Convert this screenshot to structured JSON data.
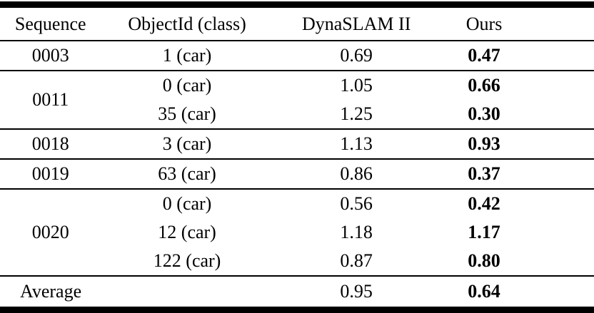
{
  "table": {
    "headers": [
      "Sequence",
      "ObjectId (class)",
      "DynaSLAM II",
      "Ours"
    ],
    "groups": [
      {
        "sequence": "0003",
        "rows": [
          {
            "object": "1 (car)",
            "dynaslam": "0.69",
            "ours": "0.47"
          }
        ]
      },
      {
        "sequence": "0011",
        "rows": [
          {
            "object": "0 (car)",
            "dynaslam": "1.05",
            "ours": "0.66"
          },
          {
            "object": "35 (car)",
            "dynaslam": "1.25",
            "ours": "0.30"
          }
        ]
      },
      {
        "sequence": "0018",
        "rows": [
          {
            "object": "3 (car)",
            "dynaslam": "1.13",
            "ours": "0.93"
          }
        ]
      },
      {
        "sequence": "0019",
        "rows": [
          {
            "object": "63 (car)",
            "dynaslam": "0.86",
            "ours": "0.37"
          }
        ]
      },
      {
        "sequence": "0020",
        "rows": [
          {
            "object": "0 (car)",
            "dynaslam": "0.56",
            "ours": "0.42"
          },
          {
            "object": "12 (car)",
            "dynaslam": "1.18",
            "ours": "1.17"
          },
          {
            "object": "122 (car)",
            "dynaslam": "0.87",
            "ours": "0.80"
          }
        ]
      }
    ],
    "footer": {
      "label": "Average",
      "dynaslam": "0.95",
      "ours": "0.64"
    },
    "colors": {
      "rule": "#000000",
      "text": "#000000",
      "background": "#ffffff"
    }
  }
}
